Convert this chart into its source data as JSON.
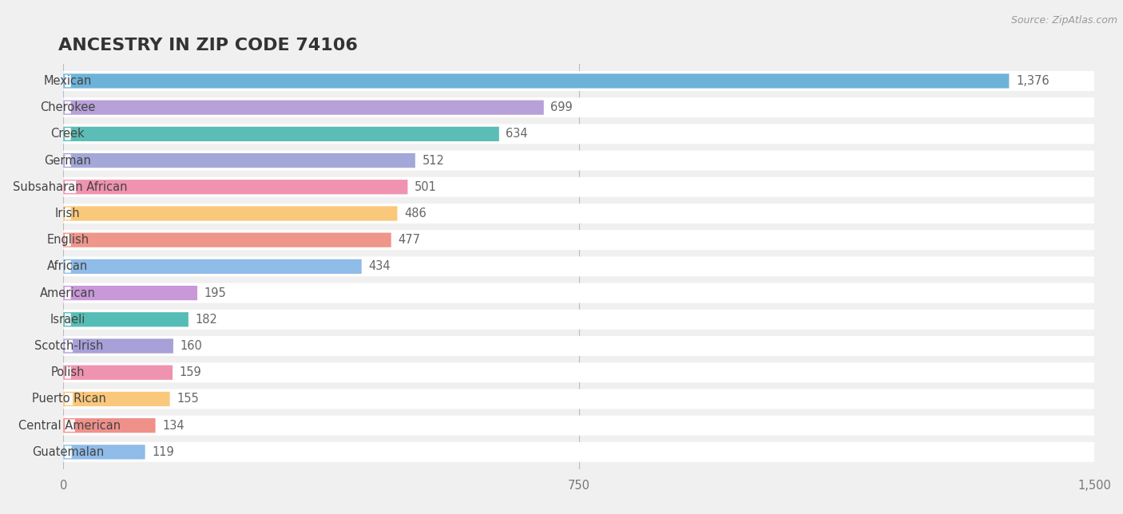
{
  "title": "ANCESTRY IN ZIP CODE 74106",
  "source": "Source: ZipAtlas.com",
  "categories": [
    "Mexican",
    "Cherokee",
    "Creek",
    "German",
    "Subsaharan African",
    "Irish",
    "English",
    "African",
    "American",
    "Israeli",
    "Scotch-Irish",
    "Polish",
    "Puerto Rican",
    "Central American",
    "Guatemalan"
  ],
  "values": [
    1376,
    699,
    634,
    512,
    501,
    486,
    477,
    434,
    195,
    182,
    160,
    159,
    155,
    134,
    119
  ],
  "colors": [
    "#6db3d9",
    "#b8a0d8",
    "#5bbdb5",
    "#a3a8d8",
    "#f093b0",
    "#f9c87a",
    "#f0958a",
    "#8fbce8",
    "#c898d8",
    "#55bdb5",
    "#a8a0d8",
    "#f093b0",
    "#f9c87a",
    "#f0908a",
    "#8fbce8"
  ],
  "xlim": [
    0,
    1500
  ],
  "xticks": [
    0,
    750,
    1500
  ],
  "background_color": "#f0f0f0",
  "row_bg_color": "#ffffff",
  "title_fontsize": 16,
  "label_fontsize": 10.5,
  "value_fontsize": 10.5
}
